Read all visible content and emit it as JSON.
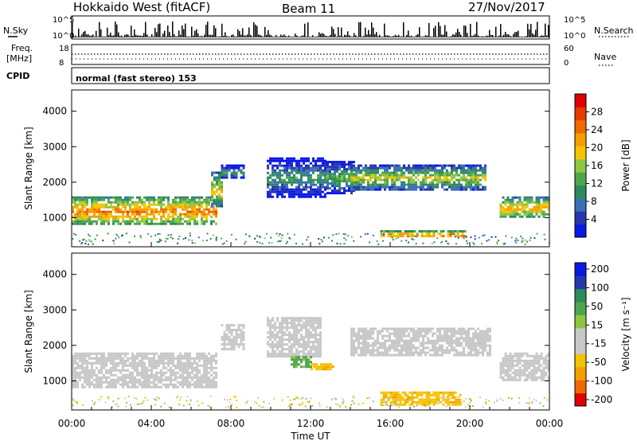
{
  "header": {
    "station": "Hokkaido West (fitACF)",
    "beam": "Beam 11",
    "date": "27/Nov/2017"
  },
  "summary_panel": {
    "nsky_label": "N.Sky",
    "nsearch_label": "N.Search",
    "freq_label_line1": "Freq.",
    "freq_label_line2": "[MHz]",
    "nave_label": "Nave",
    "cpid_label": "CPID",
    "cpid_text": "normal (fast stereo) 153",
    "noise_ticks": [
      "10^5",
      "10^0"
    ],
    "freq_ticks": [
      "18",
      "8"
    ],
    "nave_ticks": [
      "60",
      "0"
    ]
  },
  "colors": {
    "power_scale": [
      "#0a18e6",
      "#2838aa",
      "#3a6fb6",
      "#2e8a5c",
      "#4ea54e",
      "#8dc63f",
      "#f5c400",
      "#f5a000",
      "#ef6a00",
      "#e83a00",
      "#e00000"
    ],
    "velocity_scale": [
      "#e00000",
      "#ef6a00",
      "#f5a000",
      "#f5c400",
      "#c8c8c8",
      "#c8c8c8",
      "#8dc63f",
      "#4ea54e",
      "#2e8a5c",
      "#2838aa",
      "#0a18e6"
    ]
  },
  "chart_data": [
    {
      "type": "heatmap",
      "panel": "power",
      "xlabel": "",
      "ylabel": "Slant Range [km]",
      "x_range": [
        "00:00",
        "24:00"
      ],
      "ylim": [
        180,
        4600
      ],
      "y_ticks": [
        "1000",
        "2000",
        "3000",
        "4000"
      ],
      "colorbar_label": "Power [dB]",
      "colorbar_ticks": [
        "4",
        "8",
        "12",
        "16",
        "20",
        "24",
        "28"
      ],
      "colorbar_range": [
        0,
        32
      ],
      "regions": [
        {
          "t": [
            0,
            7.3
          ],
          "r": [
            800,
            1600
          ],
          "level": 24
        },
        {
          "t": [
            7.0,
            7.6
          ],
          "r": [
            1300,
            2300
          ],
          "level": 20
        },
        {
          "t": [
            7.5,
            8.6
          ],
          "r": [
            2100,
            2500
          ],
          "level": 12
        },
        {
          "t": [
            9.8,
            12.8
          ],
          "r": [
            1600,
            2700
          ],
          "level": 12
        },
        {
          "t": [
            12.8,
            14.2
          ],
          "r": [
            1700,
            2600
          ],
          "level": 14
        },
        {
          "t": [
            14.0,
            20.8
          ],
          "r": [
            1800,
            2500
          ],
          "level": 18
        },
        {
          "t": [
            15.5,
            19.8
          ],
          "r": [
            450,
            650
          ],
          "level": 26
        },
        {
          "t": [
            21.5,
            24.0
          ],
          "r": [
            1000,
            1600
          ],
          "level": 22
        }
      ]
    },
    {
      "type": "heatmap",
      "panel": "velocity",
      "xlabel": "Time UT",
      "ylabel": "Slant Range [km]",
      "x_ticks": [
        "00:00",
        "04:00",
        "08:00",
        "12:00",
        "16:00",
        "20:00",
        "00:00"
      ],
      "x_range": [
        "00:00",
        "24:00"
      ],
      "ylim": [
        180,
        4600
      ],
      "y_ticks": [
        "1000",
        "2000",
        "3000",
        "4000"
      ],
      "colorbar_label": "Velocity [m s⁻¹]",
      "colorbar_ticks": [
        "200",
        "100",
        "50",
        "15",
        "-15",
        "-50",
        "-100",
        "-200"
      ],
      "regions": [
        {
          "t": [
            0,
            7.3
          ],
          "r": [
            800,
            1800
          ],
          "velocity": 0
        },
        {
          "t": [
            7.5,
            8.6
          ],
          "r": [
            1900,
            2600
          ],
          "velocity": 0
        },
        {
          "t": [
            9.8,
            12.5
          ],
          "r": [
            1700,
            2800
          ],
          "velocity": 0
        },
        {
          "t": [
            11.0,
            12.0
          ],
          "r": [
            1400,
            1700
          ],
          "velocity": 60
        },
        {
          "t": [
            12.0,
            13.2
          ],
          "r": [
            1300,
            1500
          ],
          "velocity": -40
        },
        {
          "t": [
            14.0,
            21.0
          ],
          "r": [
            1700,
            2500
          ],
          "velocity": 0
        },
        {
          "t": [
            15.5,
            19.5
          ],
          "r": [
            300,
            700
          ],
          "velocity": -40
        },
        {
          "t": [
            21.5,
            24.0
          ],
          "r": [
            1000,
            1800
          ],
          "velocity": 0
        }
      ]
    }
  ]
}
